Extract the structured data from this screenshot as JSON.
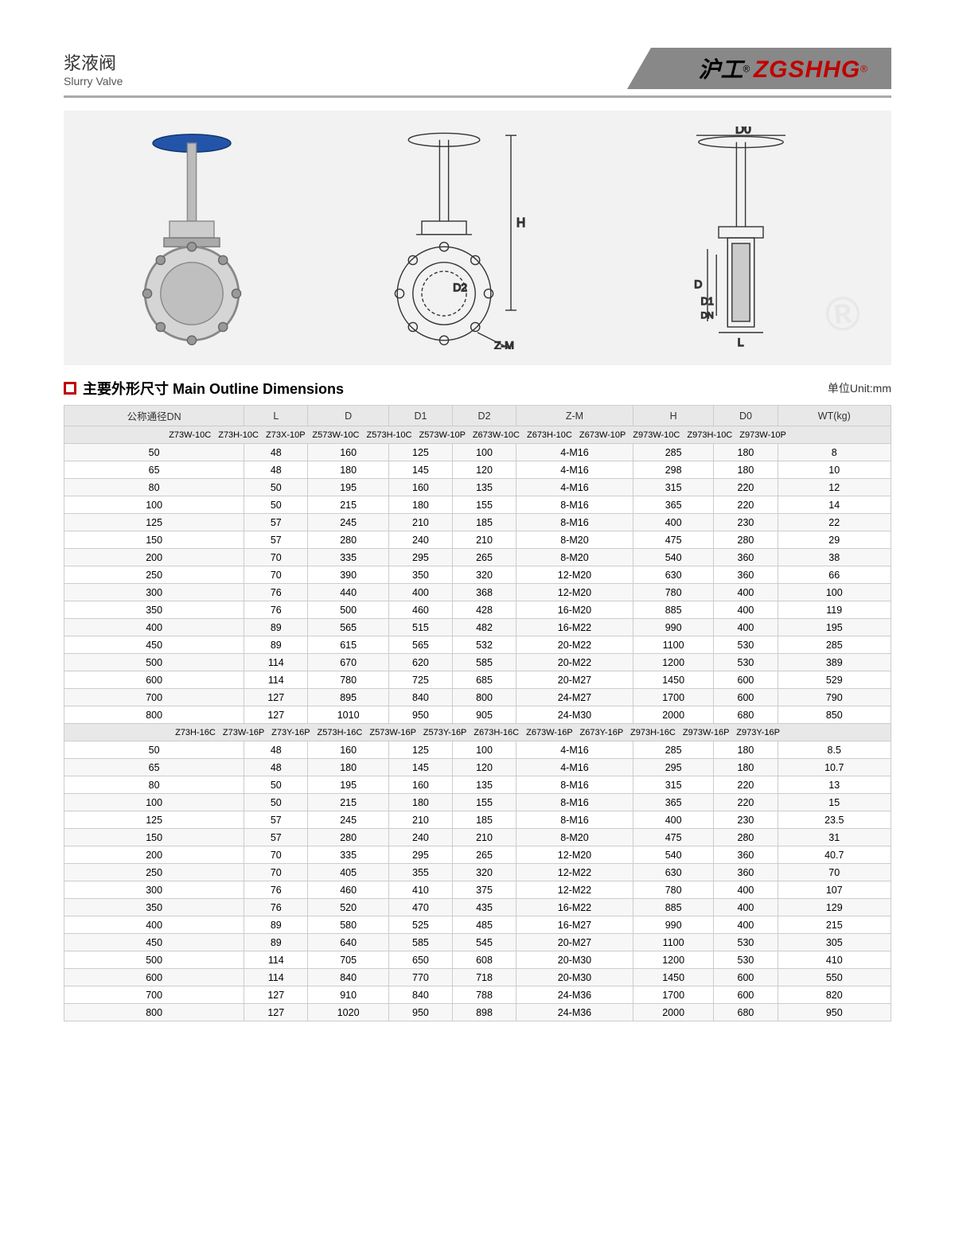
{
  "header": {
    "title_cn": "浆液阀",
    "title_en": "Slurry Valve",
    "brand_cn": "沪工",
    "brand_en": "ZGSHHG",
    "brand_color": "#c00000"
  },
  "section": {
    "icon_color": "#c00000",
    "title": "主要外形尺寸 Main Outline  Dimensions",
    "unit": "单位Unit:mm"
  },
  "diagram": {
    "labels": [
      "D0",
      "H",
      "D2",
      "Z-M",
      "D",
      "D1",
      "DN",
      "L"
    ],
    "background_color": "#f2f2f2",
    "watermark_color": "#e8e8e8"
  },
  "table": {
    "border_color": "#cccccc",
    "header_bg": "#e8e8e8",
    "stripe_bg": "#f7f7f7",
    "font_size": 12.5,
    "columns": [
      "公称通径DN",
      "L",
      "D",
      "D1",
      "D2",
      "Z-M",
      "H",
      "D0",
      "WT(kg)"
    ],
    "model_row_1": [
      "Z73W-10C",
      "Z73H-10C",
      "Z73X-10P",
      "Z573W-10C",
      "Z573H-10C",
      "Z573W-10P",
      "Z673W-10C",
      "Z673H-10C",
      "Z673W-10P",
      "Z973W-10C",
      "Z973H-10C",
      "Z973W-10P"
    ],
    "rows_1": [
      [
        "50",
        "48",
        "160",
        "125",
        "100",
        "4-M16",
        "285",
        "180",
        "8"
      ],
      [
        "65",
        "48",
        "180",
        "145",
        "120",
        "4-M16",
        "298",
        "180",
        "10"
      ],
      [
        "80",
        "50",
        "195",
        "160",
        "135",
        "4-M16",
        "315",
        "220",
        "12"
      ],
      [
        "100",
        "50",
        "215",
        "180",
        "155",
        "8-M16",
        "365",
        "220",
        "14"
      ],
      [
        "125",
        "57",
        "245",
        "210",
        "185",
        "8-M16",
        "400",
        "230",
        "22"
      ],
      [
        "150",
        "57",
        "280",
        "240",
        "210",
        "8-M20",
        "475",
        "280",
        "29"
      ],
      [
        "200",
        "70",
        "335",
        "295",
        "265",
        "8-M20",
        "540",
        "360",
        "38"
      ],
      [
        "250",
        "70",
        "390",
        "350",
        "320",
        "12-M20",
        "630",
        "360",
        "66"
      ],
      [
        "300",
        "76",
        "440",
        "400",
        "368",
        "12-M20",
        "780",
        "400",
        "100"
      ],
      [
        "350",
        "76",
        "500",
        "460",
        "428",
        "16-M20",
        "885",
        "400",
        "119"
      ],
      [
        "400",
        "89",
        "565",
        "515",
        "482",
        "16-M22",
        "990",
        "400",
        "195"
      ],
      [
        "450",
        "89",
        "615",
        "565",
        "532",
        "20-M22",
        "1100",
        "530",
        "285"
      ],
      [
        "500",
        "114",
        "670",
        "620",
        "585",
        "20-M22",
        "1200",
        "530",
        "389"
      ],
      [
        "600",
        "114",
        "780",
        "725",
        "685",
        "20-M27",
        "1450",
        "600",
        "529"
      ],
      [
        "700",
        "127",
        "895",
        "840",
        "800",
        "24-M27",
        "1700",
        "600",
        "790"
      ],
      [
        "800",
        "127",
        "1010",
        "950",
        "905",
        "24-M30",
        "2000",
        "680",
        "850"
      ]
    ],
    "model_row_2": [
      "Z73H-16C",
      "Z73W-16P",
      "Z73Y-16P",
      "Z573H-16C",
      "Z573W-16P",
      "Z573Y-16P",
      "Z673H-16C",
      "Z673W-16P",
      "Z673Y-16P",
      "Z973H-16C",
      "Z973W-16P",
      "Z973Y-16P"
    ],
    "rows_2": [
      [
        "50",
        "48",
        "160",
        "125",
        "100",
        "4-M16",
        "285",
        "180",
        "8.5"
      ],
      [
        "65",
        "48",
        "180",
        "145",
        "120",
        "4-M16",
        "295",
        "180",
        "10.7"
      ],
      [
        "80",
        "50",
        "195",
        "160",
        "135",
        "8-M16",
        "315",
        "220",
        "13"
      ],
      [
        "100",
        "50",
        "215",
        "180",
        "155",
        "8-M16",
        "365",
        "220",
        "15"
      ],
      [
        "125",
        "57",
        "245",
        "210",
        "185",
        "8-M16",
        "400",
        "230",
        "23.5"
      ],
      [
        "150",
        "57",
        "280",
        "240",
        "210",
        "8-M20",
        "475",
        "280",
        "31"
      ],
      [
        "200",
        "70",
        "335",
        "295",
        "265",
        "12-M20",
        "540",
        "360",
        "40.7"
      ],
      [
        "250",
        "70",
        "405",
        "355",
        "320",
        "12-M22",
        "630",
        "360",
        "70"
      ],
      [
        "300",
        "76",
        "460",
        "410",
        "375",
        "12-M22",
        "780",
        "400",
        "107"
      ],
      [
        "350",
        "76",
        "520",
        "470",
        "435",
        "16-M22",
        "885",
        "400",
        "129"
      ],
      [
        "400",
        "89",
        "580",
        "525",
        "485",
        "16-M27",
        "990",
        "400",
        "215"
      ],
      [
        "450",
        "89",
        "640",
        "585",
        "545",
        "20-M27",
        "1100",
        "530",
        "305"
      ],
      [
        "500",
        "114",
        "705",
        "650",
        "608",
        "20-M30",
        "1200",
        "530",
        "410"
      ],
      [
        "600",
        "114",
        "840",
        "770",
        "718",
        "20-M30",
        "1450",
        "600",
        "550"
      ],
      [
        "700",
        "127",
        "910",
        "840",
        "788",
        "24-M36",
        "1700",
        "600",
        "820"
      ],
      [
        "800",
        "127",
        "1020",
        "950",
        "898",
        "24-M36",
        "2000",
        "680",
        "950"
      ]
    ]
  }
}
